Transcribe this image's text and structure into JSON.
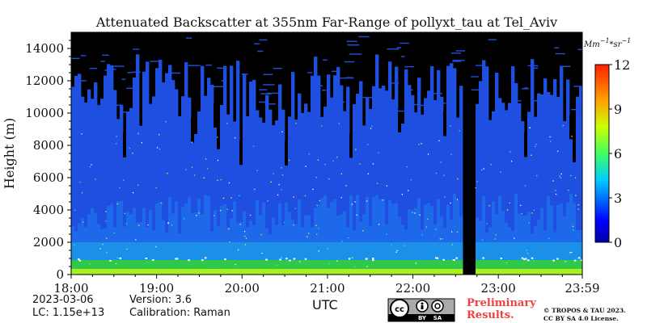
{
  "chart_data": {
    "type": "heatmap",
    "title": "Attenuated Backscatter at 355nm Far-Range of pollyxt_tau at Tel_Aviv",
    "xlabel": "",
    "ylabel": "Height (m)",
    "x_tick_labels": [
      "18:00",
      "19:00",
      "20:00",
      "21:00",
      "22:00",
      "23:00",
      "23:59"
    ],
    "x_ticks_hours": [
      18,
      19,
      20,
      21,
      22,
      23,
      23.983
    ],
    "xlim_hours": [
      18,
      23.983
    ],
    "y_ticks": [
      0,
      2000,
      4000,
      6000,
      8000,
      10000,
      12000,
      14000
    ],
    "ylim": [
      0,
      15000
    ],
    "colorbar": {
      "unit_label": "Mm^-1*sr^-1",
      "ticks": [
        0,
        3,
        6,
        9,
        12
      ],
      "range": [
        0,
        12
      ],
      "colormap": "jet"
    },
    "data_gap_hours": [
      22.55,
      22.72
    ],
    "cloud_columns_hours": [
      18.6,
      19.42,
      19.68,
      19.97,
      20.5,
      21.25,
      21.85,
      22.35,
      23.3,
      23.85
    ],
    "boundary_layer_top_m": 900
  },
  "meta": {
    "date": "2023-03-06",
    "version": "Version: 3.6",
    "lc": "LC: 1.15e+13",
    "calibration": "Calibration: Raman"
  },
  "xaxis_unit": "UTC",
  "license_badge": {
    "cc": "cc",
    "by": "BY",
    "sa": "SA"
  },
  "preliminary": {
    "line1": "Preliminary",
    "line2": "Results."
  },
  "copyright": {
    "line1": "© TROPOS & TAU 2023.",
    "line2": "CC BY SA 4.0 License."
  },
  "colors": {
    "background_signal": "#1f4fe0",
    "no_signal": "#000000",
    "boundary_layer": "#30c84a",
    "prelim_text": "#f04040"
  }
}
